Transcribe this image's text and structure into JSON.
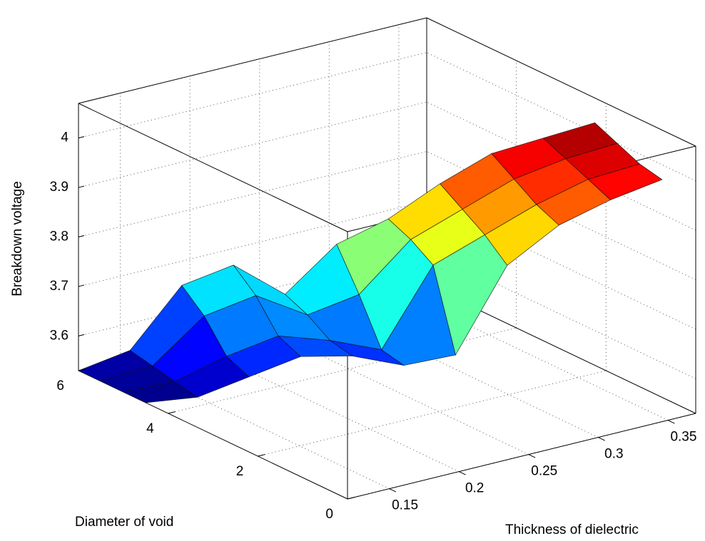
{
  "chart_data": {
    "type": "surface",
    "xlabel": "Thickness of dielectric",
    "ylabel": "Diameter of void",
    "zlabel": "Breakdown voltage",
    "x": [
      0.12,
      0.145,
      0.17,
      0.195,
      0.22,
      0.245,
      0.27,
      0.295,
      0.32,
      0.345,
      0.37
    ],
    "y": [
      [
        4.5,
        4.125,
        3.75,
        3.375,
        3,
        2.625,
        2.25,
        1.875,
        1.5,
        1.125,
        0.75
      ],
      [
        5,
        4.625,
        4.25,
        3.875,
        3.5,
        3.125,
        2.75,
        2.375,
        2,
        1.625,
        1.25
      ],
      [
        5.5,
        5.125,
        4.75,
        4.375,
        4,
        3.625,
        3.25,
        2.875,
        2.5,
        2.125,
        1.75
      ],
      [
        6,
        5.625,
        5.25,
        4.875,
        4.5,
        4.125,
        3.75,
        3.375,
        3,
        2.625,
        2.25
      ]
    ],
    "z": [
      [
        3.53,
        3.54,
        3.58,
        3.62,
        3.62,
        3.6,
        3.62,
        3.8,
        3.88,
        3.93,
        3.97
      ],
      [
        3.53,
        3.55,
        3.6,
        3.64,
        3.63,
        3.61,
        3.78,
        3.84,
        3.9,
        3.95,
        3.98
      ],
      [
        3.53,
        3.56,
        3.66,
        3.7,
        3.66,
        3.7,
        3.81,
        3.87,
        3.93,
        3.97,
        4.0
      ],
      [
        3.53,
        3.57,
        3.7,
        3.74,
        3.68,
        3.78,
        3.83,
        3.9,
        3.96,
        3.99,
        4.02
      ]
    ],
    "colormap": "jet",
    "xlim": [
      0.12,
      0.37
    ],
    "ylim": [
      0,
      6
    ],
    "zlim": [
      3.53,
      4.07
    ],
    "xticks": [
      0.15,
      0.2,
      0.25,
      0.3,
      0.35
    ],
    "yticks": [
      0,
      2,
      4,
      6
    ],
    "zticks": [
      3.6,
      3.7,
      3.8,
      3.9,
      4
    ],
    "grid": true
  }
}
